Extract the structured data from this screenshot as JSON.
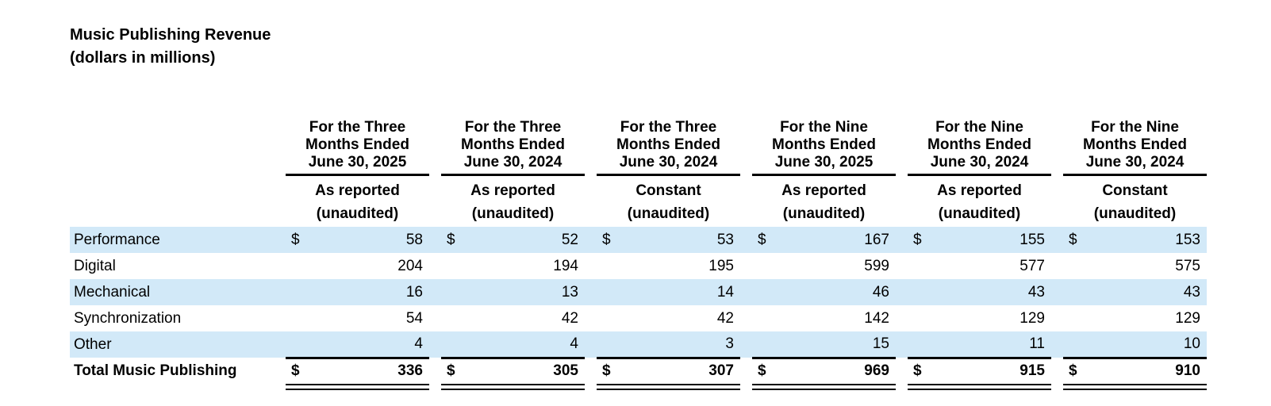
{
  "header": {
    "title": "Music Publishing Revenue",
    "subtitle": "(dollars in millions)"
  },
  "colors": {
    "stripe": "#d2e9f8",
    "text": "#000000",
    "background": "#ffffff"
  },
  "table": {
    "columns": [
      {
        "period": "For the Three\nMonths Ended\nJune 30, 2025",
        "basis": "As reported",
        "note": "(unaudited)"
      },
      {
        "period": "For the Three\nMonths Ended\nJune 30, 2024",
        "basis": "As reported",
        "note": "(unaudited)"
      },
      {
        "period": "For the Three\nMonths Ended\nJune 30, 2024",
        "basis": "Constant",
        "note": "(unaudited)"
      },
      {
        "period": "For the Nine\nMonths Ended\nJune 30, 2025",
        "basis": "As reported",
        "note": "(unaudited)"
      },
      {
        "period": "For the Nine\nMonths Ended\nJune 30, 2024",
        "basis": "As reported",
        "note": "(unaudited)"
      },
      {
        "period": "For the Nine\nMonths Ended\nJune 30, 2024",
        "basis": "Constant",
        "note": "(unaudited)"
      }
    ],
    "rows": [
      {
        "label": "Performance",
        "currency": "$",
        "values": [
          "58",
          "52",
          "53",
          "167",
          "155",
          "153"
        ]
      },
      {
        "label": "Digital",
        "values": [
          "204",
          "194",
          "195",
          "599",
          "577",
          "575"
        ]
      },
      {
        "label": "Mechanical",
        "values": [
          "16",
          "13",
          "14",
          "46",
          "43",
          "43"
        ]
      },
      {
        "label": "Synchronization",
        "values": [
          "54",
          "42",
          "42",
          "142",
          "129",
          "129"
        ]
      },
      {
        "label": "Other",
        "values": [
          "4",
          "4",
          "3",
          "15",
          "11",
          "10"
        ]
      }
    ],
    "total": {
      "label": "Total Music Publishing",
      "currency": "$",
      "values": [
        "336",
        "305",
        "307",
        "969",
        "915",
        "910"
      ]
    }
  }
}
